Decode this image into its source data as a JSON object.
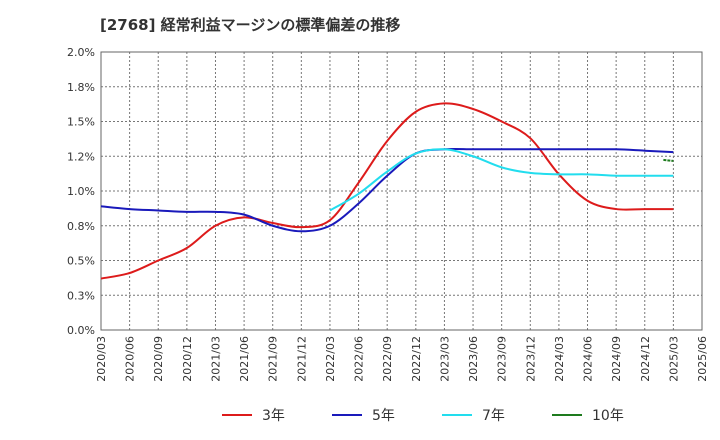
{
  "chart_data": {
    "type": "line",
    "title": "[2768]  経常利益マージンの標準偏差の推移",
    "x": [
      "2020/03",
      "2020/06",
      "2020/09",
      "2020/12",
      "2021/03",
      "2021/06",
      "2021/09",
      "2021/12",
      "2022/03",
      "2022/06",
      "2022/09",
      "2022/12",
      "2023/03",
      "2023/06",
      "2023/09",
      "2023/12",
      "2024/03",
      "2024/06",
      "2024/09",
      "2024/12",
      "2025/03",
      "2025/06"
    ],
    "ylim": [
      0,
      2.0
    ],
    "yticks": [
      "0.0%",
      "0.3%",
      "0.5%",
      "0.8%",
      "1.0%",
      "1.2%",
      "1.5%",
      "1.8%",
      "2.0%"
    ],
    "grid": true,
    "legend_position": "bottom",
    "series": [
      {
        "name": "3年",
        "color": "#dd1b1b",
        "values": [
          0.37,
          0.41,
          0.5,
          0.59,
          0.75,
          0.81,
          0.77,
          0.74,
          0.79,
          1.06,
          1.36,
          1.57,
          1.63,
          1.59,
          1.5,
          1.38,
          1.12,
          0.93,
          0.87,
          0.87,
          0.87,
          null
        ]
      },
      {
        "name": "5年",
        "color": "#1a1abb",
        "values": [
          0.89,
          0.87,
          0.86,
          0.85,
          0.85,
          0.83,
          0.75,
          0.71,
          0.75,
          0.91,
          1.11,
          1.27,
          1.3,
          1.3,
          1.3,
          1.3,
          1.3,
          1.3,
          1.3,
          1.29,
          1.28,
          null
        ]
      },
      {
        "name": "7年",
        "color": "#22ddee",
        "values": [
          null,
          null,
          null,
          null,
          null,
          null,
          null,
          null,
          0.86,
          0.98,
          1.14,
          1.27,
          1.3,
          1.25,
          1.17,
          1.13,
          1.12,
          1.12,
          1.11,
          1.11,
          1.11,
          null
        ]
      },
      {
        "name": "10年",
        "color": "#1e7b1e",
        "values": [
          null,
          null,
          null,
          null,
          null,
          null,
          null,
          null,
          null,
          null,
          null,
          null,
          null,
          null,
          null,
          null,
          null,
          null,
          null,
          null,
          1.22,
          null
        ]
      }
    ]
  }
}
